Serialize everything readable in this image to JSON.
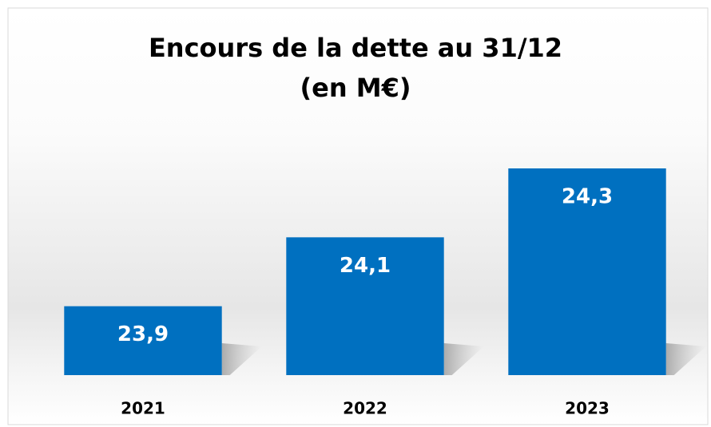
{
  "chart_data": {
    "type": "bar",
    "title": "Encours de la dette au 31/12",
    "subtitle": "(en M€)",
    "categories": [
      "2021",
      "2022",
      "2023"
    ],
    "values": [
      23.9,
      24.1,
      24.3
    ],
    "value_labels": [
      "23,9",
      "24,1",
      "24,3"
    ],
    "color": "#0070c0",
    "ylim": [
      23.7,
      24.3
    ]
  }
}
